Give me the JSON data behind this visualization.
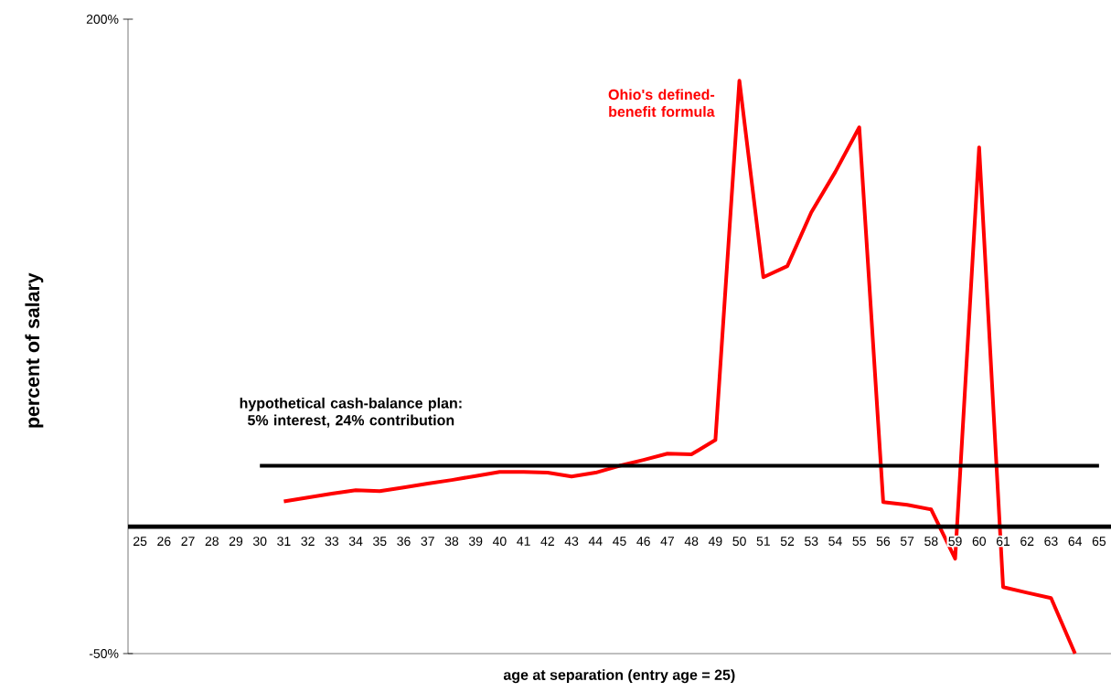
{
  "chart_data": {
    "type": "line",
    "xlabel": "age at separation (entry age = 25)",
    "ylabel": "percent of salary",
    "categories": [
      "25",
      "26",
      "27",
      "28",
      "29",
      "30",
      "31",
      "32",
      "33",
      "34",
      "35",
      "36",
      "37",
      "38",
      "39",
      "40",
      "41",
      "42",
      "43",
      "44",
      "45",
      "46",
      "47",
      "48",
      "49",
      "50",
      "51",
      "52",
      "53",
      "54",
      "55",
      "56",
      "57",
      "58",
      "59",
      "60",
      "61",
      "62",
      "63",
      "64",
      "65"
    ],
    "ylim": [
      -50,
      200
    ],
    "yticks": [
      {
        "value": -50,
        "label": "-50%"
      },
      {
        "value": 200,
        "label": "200%"
      }
    ],
    "marker": "none",
    "line_style": "solid",
    "series": [
      {
        "name": "Ohio's defined-benefit formula",
        "color": "#ff0000",
        "values": [
          null,
          null,
          null,
          null,
          null,
          null,
          10,
          11.5,
          13,
          14.4,
          14,
          15.5,
          17,
          18.4,
          20,
          21.6,
          21.6,
          21.3,
          19.8,
          21.3,
          24,
          26.3,
          28.8,
          28.5,
          34.2,
          175.8,
          98.3,
          102.7,
          123.9,
          139.8,
          157.4,
          9.7,
          8.6,
          6.8,
          -12.6,
          149.5,
          -23.8,
          -26,
          -28.1,
          -50,
          null
        ]
      },
      {
        "name": "hypothetical cash-balance plan: 5% interest, 24% contribution",
        "color": "#000000",
        "values": [
          null,
          null,
          null,
          null,
          null,
          24,
          24,
          24,
          24,
          24,
          24,
          24,
          24,
          24,
          24,
          24,
          24,
          24,
          24,
          24,
          24,
          24,
          24,
          24,
          24,
          24,
          24,
          24,
          24,
          24,
          24,
          24,
          24,
          24,
          24,
          24,
          24,
          24,
          24,
          24,
          24
        ]
      }
    ]
  }
}
